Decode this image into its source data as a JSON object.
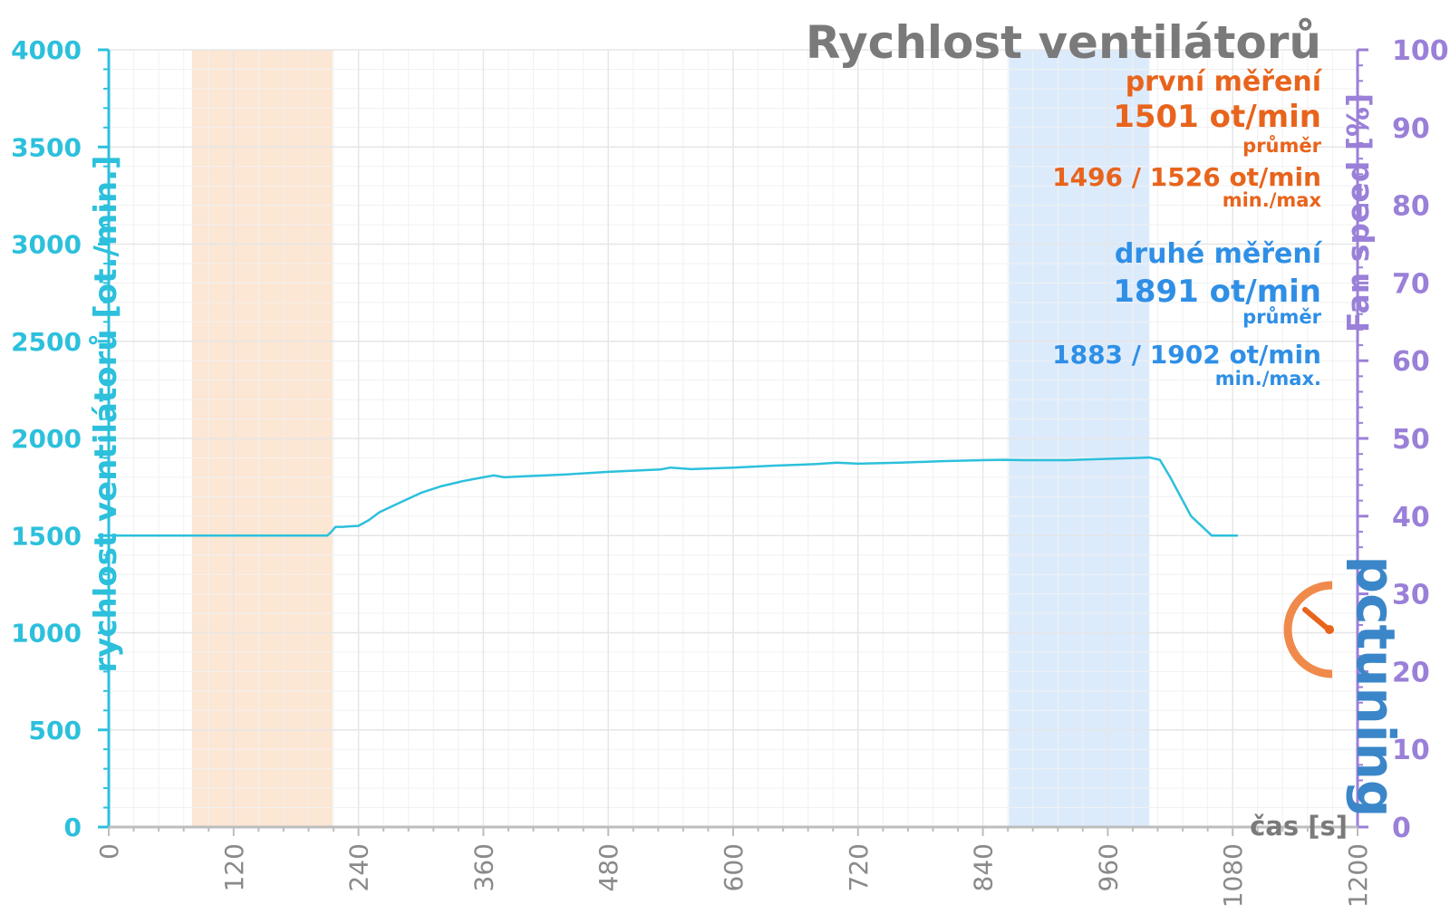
{
  "chart_data": {
    "type": "line",
    "title": "Rychlost ventilátorů",
    "xlabel": "čas [s]",
    "ylabel": "rychlost ventilátorů [ot./min.]",
    "y2label": "Fan speed [%]",
    "xlim": [
      0,
      1200
    ],
    "ylim": [
      0,
      4000
    ],
    "y2lim": [
      0,
      100
    ],
    "xticks": [
      0,
      120,
      240,
      360,
      480,
      600,
      720,
      840,
      960,
      1080,
      1200
    ],
    "yticks": [
      0,
      500,
      1000,
      1500,
      2000,
      2500,
      3000,
      3500,
      4000
    ],
    "y2ticks": [
      0,
      10,
      20,
      30,
      40,
      50,
      60,
      70,
      80,
      90,
      100
    ],
    "grid": true,
    "regions": [
      {
        "x0": 80,
        "x1": 215,
        "color": "#fce6d4"
      },
      {
        "x0": 865,
        "x1": 1000,
        "color": "#dcebfc"
      }
    ],
    "series": [
      {
        "color": "#2cc0dc",
        "x": [
          0,
          60,
          120,
          180,
          210,
          214,
          218,
          225,
          240,
          250,
          260,
          280,
          300,
          320,
          340,
          360,
          370,
          380,
          400,
          440,
          480,
          530,
          540,
          560,
          600,
          640,
          680,
          700,
          720,
          760,
          800,
          840,
          860,
          880,
          920,
          960,
          990,
          1000,
          1010,
          1020,
          1030,
          1040,
          1060,
          1085
        ],
        "y": [
          1500,
          1500,
          1500,
          1500,
          1500,
          1520,
          1545,
          1545,
          1550,
          1580,
          1620,
          1670,
          1720,
          1755,
          1780,
          1800,
          1810,
          1800,
          1805,
          1815,
          1828,
          1840,
          1850,
          1842,
          1850,
          1860,
          1868,
          1875,
          1870,
          1875,
          1883,
          1888,
          1890,
          1888,
          1888,
          1895,
          1900,
          1902,
          1890,
          1800,
          1700,
          1600,
          1500,
          1500
        ]
      }
    ],
    "annotations": {
      "first": {
        "label": "první měření",
        "avg": "1501 ot/min",
        "avg_label": "průměr",
        "minmax": "1496 / 1526 ot/min",
        "minmax_label": "min./max",
        "color": "#e8641c"
      },
      "second": {
        "label": "druhé měření",
        "avg": "1891 ot/min",
        "avg_label": "průměr",
        "minmax": "1883 / 1902 ot/min",
        "minmax_label": "min./max.",
        "color": "#2f8fe6"
      }
    }
  },
  "logo": {
    "text": "pctuning"
  },
  "colors": {
    "left_axis": "#2cc0dc",
    "right_axis": "#9a80d8",
    "axis_title": "#7a7a7a",
    "grid": "#e6e6e6"
  }
}
